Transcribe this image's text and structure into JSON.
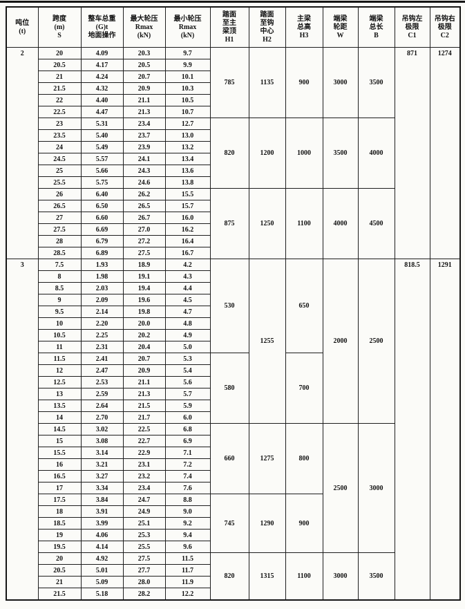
{
  "table": {
    "columns": [
      {
        "key": "tonnage",
        "lines": [
          "吨位",
          "(t)"
        ]
      },
      {
        "key": "span",
        "lines": [
          "跨度",
          "(m)",
          "S"
        ]
      },
      {
        "key": "weight",
        "lines": [
          "整车总重",
          "(G)t",
          "地面操作"
        ]
      },
      {
        "key": "rmax",
        "lines": [
          "最大轮压",
          "Rmax",
          "(kN)"
        ]
      },
      {
        "key": "rmin",
        "lines": [
          "最小轮压",
          "Rmax",
          "(kN)"
        ]
      },
      {
        "key": "h1",
        "lines": [
          "踏面",
          "至主",
          "梁顶",
          "H1"
        ]
      },
      {
        "key": "h2",
        "lines": [
          "踏面",
          "至钩",
          "中心",
          "H2"
        ]
      },
      {
        "key": "h3",
        "lines": [
          "主梁",
          "总高",
          "H3"
        ]
      },
      {
        "key": "w",
        "lines": [
          "端梁",
          "轮距",
          "W"
        ]
      },
      {
        "key": "b",
        "lines": [
          "端梁",
          "总长",
          "B"
        ]
      },
      {
        "key": "c1",
        "lines": [
          "吊钩左",
          "极限",
          "C1"
        ]
      },
      {
        "key": "c2",
        "lines": [
          "吊钩右",
          "极限",
          "C2"
        ]
      }
    ],
    "rows": [
      [
        "20",
        "4.09",
        "20.3",
        "9.7"
      ],
      [
        "20.5",
        "4.17",
        "20.5",
        "9.9"
      ],
      [
        "21",
        "4.24",
        "20.7",
        "10.1"
      ],
      [
        "21.5",
        "4.32",
        "20.9",
        "10.3"
      ],
      [
        "22",
        "4.40",
        "21.1",
        "10.5"
      ],
      [
        "22.5",
        "4.47",
        "21.3",
        "10.7"
      ],
      [
        "23",
        "5.31",
        "23.4",
        "12.7"
      ],
      [
        "23.5",
        "5.40",
        "23.7",
        "13.0"
      ],
      [
        "24",
        "5.49",
        "23.9",
        "13.2"
      ],
      [
        "24.5",
        "5.57",
        "24.1",
        "13.4"
      ],
      [
        "25",
        "5.66",
        "24.3",
        "13.6"
      ],
      [
        "25.5",
        "5.75",
        "24.6",
        "13.8"
      ],
      [
        "26",
        "6.40",
        "26.2",
        "15.5"
      ],
      [
        "26.5",
        "6.50",
        "26.5",
        "15.7"
      ],
      [
        "27",
        "6.60",
        "26.7",
        "16.0"
      ],
      [
        "27.5",
        "6.69",
        "27.0",
        "16.2"
      ],
      [
        "28",
        "6.79",
        "27.2",
        "16.4"
      ],
      [
        "28.5",
        "6.89",
        "27.5",
        "16.7"
      ],
      [
        "7.5",
        "1.93",
        "18.9",
        "4.2"
      ],
      [
        "8",
        "1.98",
        "19.1",
        "4.3"
      ],
      [
        "8.5",
        "2.03",
        "19.4",
        "4.4"
      ],
      [
        "9",
        "2.09",
        "19.6",
        "4.5"
      ],
      [
        "9.5",
        "2.14",
        "19.8",
        "4.7"
      ],
      [
        "10",
        "2.20",
        "20.0",
        "4.8"
      ],
      [
        "10.5",
        "2.25",
        "20.2",
        "4.9"
      ],
      [
        "11",
        "2.31",
        "20.4",
        "5.0"
      ],
      [
        "11.5",
        "2.41",
        "20.7",
        "5.3"
      ],
      [
        "12",
        "2.47",
        "20.9",
        "5.4"
      ],
      [
        "12.5",
        "2.53",
        "21.1",
        "5.6"
      ],
      [
        "13",
        "2.59",
        "21.3",
        "5.7"
      ],
      [
        "13.5",
        "2.64",
        "21.5",
        "5.9"
      ],
      [
        "14",
        "2.70",
        "21.7",
        "6.0"
      ],
      [
        "14.5",
        "3.02",
        "22.5",
        "6.8"
      ],
      [
        "15",
        "3.08",
        "22.7",
        "6.9"
      ],
      [
        "15.5",
        "3.14",
        "22.9",
        "7.1"
      ],
      [
        "16",
        "3.21",
        "23.1",
        "7.2"
      ],
      [
        "16.5",
        "3.27",
        "23.2",
        "7.4"
      ],
      [
        "17",
        "3.34",
        "23.4",
        "7.6"
      ],
      [
        "17.5",
        "3.84",
        "24.7",
        "8.8"
      ],
      [
        "18",
        "3.91",
        "24.9",
        "9.0"
      ],
      [
        "18.5",
        "3.99",
        "25.1",
        "9.2"
      ],
      [
        "19",
        "4.06",
        "25.3",
        "9.4"
      ],
      [
        "19.5",
        "4.14",
        "25.5",
        "9.6"
      ],
      [
        "20",
        "4.92",
        "27.5",
        "11.5"
      ],
      [
        "20.5",
        "5.01",
        "27.7",
        "11.7"
      ],
      [
        "21",
        "5.09",
        "28.0",
        "11.9"
      ],
      [
        "21.5",
        "5.18",
        "28.2",
        "12.2"
      ]
    ],
    "merged": {
      "tonnage": [
        {
          "start": 0,
          "count": 18,
          "value": "2"
        },
        {
          "start": 18,
          "count": 29,
          "value": "3"
        }
      ],
      "h1": [
        {
          "start": 0,
          "count": 6,
          "value": "785"
        },
        {
          "start": 6,
          "count": 6,
          "value": "820"
        },
        {
          "start": 12,
          "count": 6,
          "value": "875"
        },
        {
          "start": 18,
          "count": 8,
          "value": "530"
        },
        {
          "start": 26,
          "count": 6,
          "value": "580"
        },
        {
          "start": 32,
          "count": 6,
          "value": "660"
        },
        {
          "start": 38,
          "count": 5,
          "value": "745"
        },
        {
          "start": 43,
          "count": 4,
          "value": "820"
        }
      ],
      "h2": [
        {
          "start": 0,
          "count": 6,
          "value": "1135"
        },
        {
          "start": 6,
          "count": 6,
          "value": "1200"
        },
        {
          "start": 12,
          "count": 6,
          "value": "1250"
        },
        {
          "start": 18,
          "count": 14,
          "value": "1255"
        },
        {
          "start": 32,
          "count": 6,
          "value": "1275"
        },
        {
          "start": 38,
          "count": 5,
          "value": "1290"
        },
        {
          "start": 43,
          "count": 4,
          "value": "1315"
        }
      ],
      "h3": [
        {
          "start": 0,
          "count": 6,
          "value": "900"
        },
        {
          "start": 6,
          "count": 6,
          "value": "1000"
        },
        {
          "start": 12,
          "count": 6,
          "value": "1100"
        },
        {
          "start": 18,
          "count": 8,
          "value": "650"
        },
        {
          "start": 26,
          "count": 6,
          "value": "700"
        },
        {
          "start": 32,
          "count": 6,
          "value": "800"
        },
        {
          "start": 38,
          "count": 5,
          "value": "900"
        },
        {
          "start": 43,
          "count": 4,
          "value": "1100"
        }
      ],
      "w": [
        {
          "start": 0,
          "count": 6,
          "value": "3000"
        },
        {
          "start": 6,
          "count": 6,
          "value": "3500"
        },
        {
          "start": 12,
          "count": 6,
          "value": "4000"
        },
        {
          "start": 18,
          "count": 14,
          "value": "2000"
        },
        {
          "start": 32,
          "count": 11,
          "value": "2500"
        },
        {
          "start": 43,
          "count": 4,
          "value": "3000"
        }
      ],
      "b": [
        {
          "start": 0,
          "count": 6,
          "value": "3500"
        },
        {
          "start": 6,
          "count": 6,
          "value": "4000"
        },
        {
          "start": 12,
          "count": 6,
          "value": "4500"
        },
        {
          "start": 18,
          "count": 14,
          "value": "2500"
        },
        {
          "start": 32,
          "count": 11,
          "value": "3000"
        },
        {
          "start": 43,
          "count": 4,
          "value": "3500"
        }
      ],
      "c1": [
        {
          "start": 0,
          "count": 18,
          "value": "871"
        },
        {
          "start": 18,
          "count": 29,
          "value": "818.5"
        }
      ],
      "c2": [
        {
          "start": 0,
          "count": 18,
          "value": "1274"
        },
        {
          "start": 18,
          "count": 29,
          "value": "1291"
        }
      ]
    }
  }
}
